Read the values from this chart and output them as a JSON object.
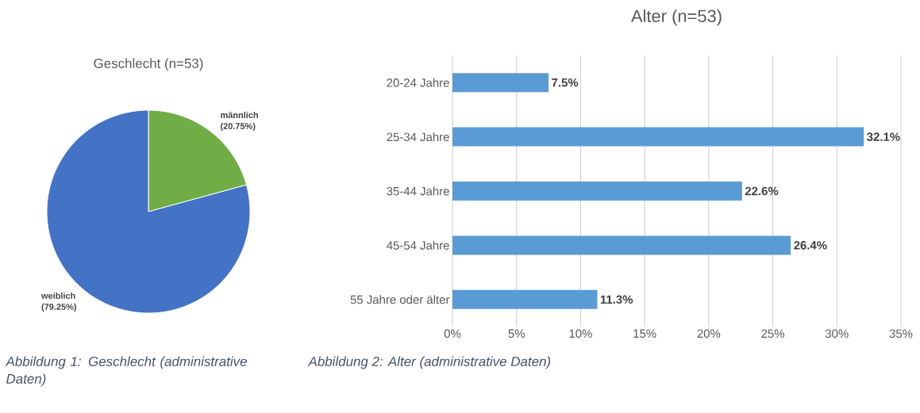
{
  "chart_data": [
    {
      "type": "pie",
      "title": "Geschlecht (n=53)",
      "categories": [
        "männlich",
        "weiblich"
      ],
      "values": [
        20.75,
        79.25
      ],
      "value_labels": [
        "(20.75%)",
        "(79.25%)"
      ],
      "colors": [
        "#70ad47",
        "#4472c4"
      ],
      "annotations": [
        "Abbildung 1: Geschlecht (administrative Daten)"
      ]
    },
    {
      "type": "bar",
      "orientation": "horizontal",
      "title": "Alter (n=53)",
      "categories": [
        "20-24 Jahre",
        "25-34 Jahre",
        "35-44 Jahre",
        "45-54 Jahre",
        "55 Jahre oder älter"
      ],
      "values": [
        7.5,
        32.1,
        22.6,
        26.4,
        11.3
      ],
      "value_labels": [
        "7.5%",
        "32.1%",
        "22.6%",
        "26.4%",
        "11.3%"
      ],
      "color": "#5b9bd5",
      "xlim": [
        0,
        35
      ],
      "xticks": [
        {
          "value": 0,
          "label": "0%"
        },
        {
          "value": 5,
          "label": "5%"
        },
        {
          "value": 10,
          "label": "10%"
        },
        {
          "value": 15,
          "label": "15%"
        },
        {
          "value": 20,
          "label": "20%"
        },
        {
          "value": 25,
          "label": "25%"
        },
        {
          "value": 30,
          "label": "30%"
        },
        {
          "value": 35,
          "label": "35%"
        }
      ],
      "grid": "x",
      "annotations": [
        "Abbildung 2: Alter (administrative Daten)"
      ]
    }
  ]
}
